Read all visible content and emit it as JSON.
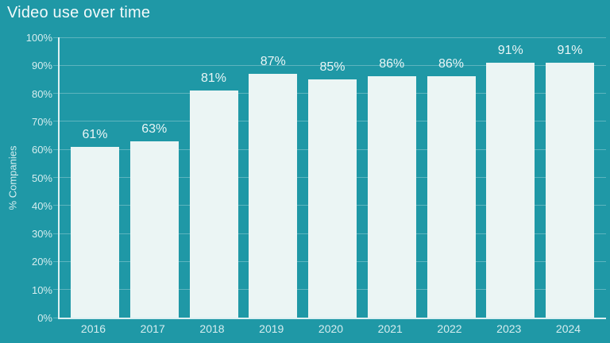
{
  "chart_data": {
    "type": "bar",
    "title": "Video use over time",
    "xlabel": "",
    "ylabel": "% Companies",
    "categories": [
      "2016",
      "2017",
      "2018",
      "2019",
      "2020",
      "2021",
      "2022",
      "2023",
      "2024"
    ],
    "values": [
      61,
      63,
      81,
      87,
      85,
      86,
      86,
      91,
      91
    ],
    "bar_labels": [
      "61%",
      "63%",
      "81%",
      "87%",
      "85%",
      "86%",
      "86%",
      "91%",
      "91%"
    ],
    "y_ticks": [
      "0%",
      "10%",
      "20%",
      "30%",
      "40%",
      "50%",
      "60%",
      "70%",
      "80%",
      "90%",
      "100%"
    ],
    "ylim": [
      0,
      100
    ],
    "grid": true,
    "legend": false,
    "colors": {
      "background": "#1f98a6",
      "bar_fill": "#ebf5f4",
      "gridline": "rgba(255,255,255,0.28)",
      "axis_line": "rgba(255,255,255,0.85)",
      "title_text": "#f2fafb",
      "tick_text": "#d6edef",
      "bar_label_text": "#e9f5f6"
    }
  }
}
